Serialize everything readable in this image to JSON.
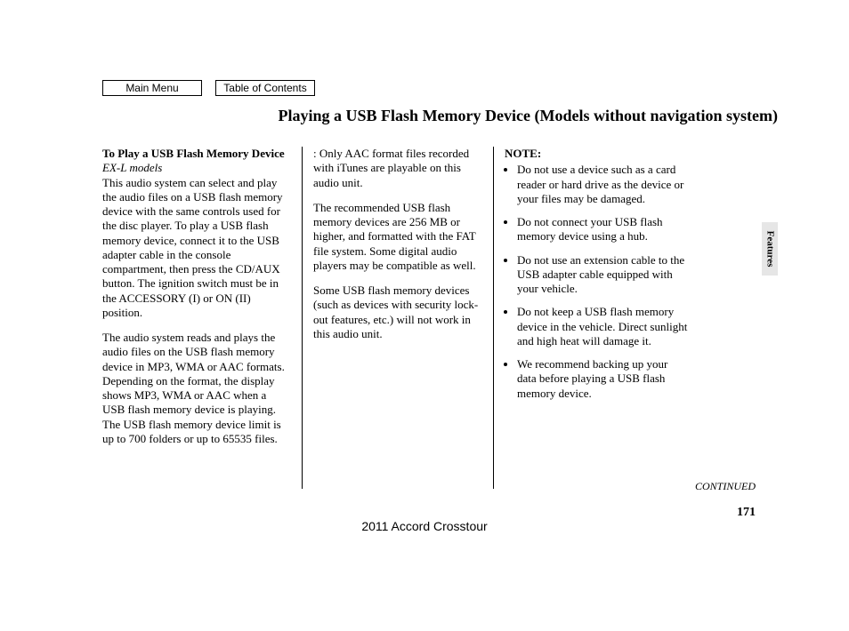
{
  "nav": {
    "main_menu": "Main Menu",
    "toc": "Table of Contents"
  },
  "title": "Playing a USB Flash Memory Device (Models without navigation system)",
  "col1": {
    "heading": "To Play a USB Flash Memory Device",
    "models": "EX-L models",
    "p1": "This audio system can select and play the audio files on a USB flash memory device with the same controls used for the disc player. To play a USB flash memory device, connect it to the USB adapter cable in the console compartment, then press the CD/AUX button. The ignition switch must be in the ACCESSORY (I) or ON (II) position.",
    "p2": "The audio system reads and plays the audio files on the USB flash memory device in MP3, WMA or AAC   formats. Depending on the format, the display shows MP3, WMA or AAC when a USB flash memory device is playing. The USB flash memory device limit is up to 700 folders or up to 65535 files."
  },
  "col2": {
    "p1_prefix": ":  ",
    "p1": "Only AAC format files recorded with iTunes are playable on this audio unit.",
    "p2": "The recommended USB flash memory devices are 256 MB or higher, and formatted with the FAT file system. Some digital audio players may be compatible as well.",
    "p3": "Some USB flash memory devices (such as devices with security lock-out features, etc.) will not work in this audio unit."
  },
  "col3": {
    "note_label": "NOTE:",
    "items": [
      "Do not use a device such as a card reader or hard drive as the device or your files may be damaged.",
      "Do not connect your USB flash memory device using a hub.",
      "Do not use an extension cable to the USB adapter cable equipped with your vehicle.",
      "Do not keep a USB flash memory device in the vehicle. Direct sunlight and high heat will damage it.",
      "We recommend backing up your data before playing a USB flash memory device."
    ]
  },
  "side_tab": "Features",
  "continued": "CONTINUED",
  "page_number": "171",
  "footer_model": "2011 Accord Crosstour"
}
